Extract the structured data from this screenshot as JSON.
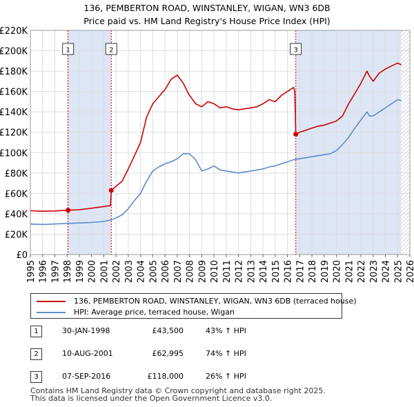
{
  "title": {
    "line1": "136, PEMBERTON ROAD, WINSTANLEY, WIGAN, WN3 6DB",
    "line2": "Price paid vs. HM Land Registry's House Price Index (HPI)"
  },
  "colors": {
    "property_line": "#cc0000",
    "hpi_line": "#5b8ccc",
    "shade": "#dde6f5",
    "grid": "#dddddd",
    "marker": "#cc0000"
  },
  "legend": {
    "property_label": "136, PEMBERTON ROAD, WINSTANLEY, WIGAN, WN3 6DB (terraced house)",
    "hpi_label": "HPI: Average price, terraced house, Wigan"
  },
  "sales": [
    {
      "num": "1",
      "date": "30-JAN-1998",
      "price": "£43,500",
      "hpi_change": "43% ↑ HPI"
    },
    {
      "num": "2",
      "date": "10-AUG-2001",
      "price": "£62,995",
      "hpi_change": "74% ↑ HPI"
    },
    {
      "num": "3",
      "date": "07-SEP-2016",
      "price": "£118,000",
      "hpi_change": "26% ↑ HPI"
    }
  ],
  "footer": {
    "line1": "Contains HM Land Registry data © Crown copyright and database right 2025.",
    "line2": "This data is licensed under the Open Government Licence v3.0."
  },
  "chart_data": {
    "type": "line",
    "xlim": [
      1995,
      2026
    ],
    "ylim": [
      0,
      220000
    ],
    "y_ticks": [
      {
        "value": 0,
        "label": "£0"
      },
      {
        "value": 20000,
        "label": "£20K"
      },
      {
        "value": 40000,
        "label": "£40K"
      },
      {
        "value": 60000,
        "label": "£60K"
      },
      {
        "value": 80000,
        "label": "£80K"
      },
      {
        "value": 100000,
        "label": "£100K"
      },
      {
        "value": 120000,
        "label": "£120K"
      },
      {
        "value": 140000,
        "label": "£140K"
      },
      {
        "value": 160000,
        "label": "£160K"
      },
      {
        "value": 180000,
        "label": "£180K"
      },
      {
        "value": 200000,
        "label": "£200K"
      },
      {
        "value": 220000,
        "label": "£220K"
      }
    ],
    "x_ticks": [
      "1995",
      "1996",
      "1997",
      "1998",
      "1999",
      "2000",
      "2001",
      "2002",
      "2003",
      "2004",
      "2005",
      "2006",
      "2007",
      "2008",
      "2009",
      "2010",
      "2011",
      "2012",
      "2013",
      "2014",
      "2015",
      "2016",
      "2017",
      "2018",
      "2019",
      "2020",
      "2021",
      "2022",
      "2023",
      "2024",
      "2025",
      "2026"
    ],
    "shaded_ranges": [
      [
        1998.08,
        2001.61
      ],
      [
        2016.68,
        2025.3
      ]
    ],
    "hatched_range": [
      2025.3,
      2026
    ],
    "sale_markers": [
      {
        "label": "1",
        "x": 1998.08,
        "y": 43500
      },
      {
        "label": "2",
        "x": 2001.61,
        "y": 62995
      },
      {
        "label": "3",
        "x": 2016.68,
        "y": 118000
      }
    ],
    "series": [
      {
        "name": "136, PEMBERTON ROAD, WINSTANLEY, WIGAN, WN3 6DB (terraced house)",
        "color": "#cc0000",
        "x": [
          1995,
          1996,
          1997,
          1998.08,
          1999,
          2000,
          2001.55,
          2001.61,
          2002,
          2002.5,
          2003,
          2003.5,
          2004,
          2004.5,
          2005,
          2005.5,
          2006,
          2006.5,
          2007,
          2007.5,
          2007.9,
          2008.5,
          2009,
          2009.5,
          2010,
          2010.5,
          2011,
          2011.5,
          2012,
          2012.5,
          2013,
          2013.5,
          2014,
          2014.5,
          2015,
          2015.5,
          2016,
          2016.5,
          2016.6,
          2016.68,
          2017,
          2017.5,
          2018,
          2018.5,
          2019,
          2019.5,
          2020,
          2020.5,
          2021,
          2021.5,
          2022,
          2022.5,
          2022.7,
          2023,
          2023.5,
          2024,
          2024.5,
          2025,
          2025.3
        ],
        "y": [
          43000,
          42500,
          42800,
          43500,
          44000,
          45500,
          48000,
          62995,
          67000,
          72000,
          84000,
          97000,
          110000,
          135000,
          148000,
          155000,
          162000,
          172000,
          176000,
          168000,
          158000,
          148000,
          145000,
          150000,
          148000,
          144000,
          145000,
          143000,
          142000,
          143000,
          144000,
          145000,
          148000,
          152000,
          150000,
          156000,
          160000,
          164000,
          160000,
          118000,
          120000,
          122000,
          124000,
          126000,
          127000,
          129000,
          131000,
          136000,
          148000,
          158000,
          168000,
          180000,
          175000,
          170000,
          178000,
          182000,
          185000,
          188000,
          186000
        ]
      },
      {
        "name": "HPI: Average price, terraced house, Wigan",
        "color": "#5b8ccc",
        "x": [
          1995,
          1996,
          1997,
          1998,
          1999,
          2000,
          2001,
          2001.6,
          2002,
          2002.5,
          2003,
          2003.5,
          2004,
          2004.5,
          2005,
          2005.5,
          2006,
          2006.5,
          2007,
          2007.5,
          2008,
          2008.5,
          2009,
          2009.5,
          2010,
          2010.5,
          2011,
          2011.5,
          2012,
          2012.5,
          2013,
          2013.5,
          2014,
          2014.5,
          2015,
          2015.5,
          2016,
          2016.5,
          2017,
          2017.5,
          2018,
          2018.5,
          2019,
          2019.5,
          2020,
          2020.5,
          2021,
          2021.5,
          2022,
          2022.5,
          2022.7,
          2023,
          2023.5,
          2024,
          2024.5,
          2025,
          2025.3
        ],
        "y": [
          30000,
          29500,
          30000,
          30500,
          31000,
          31500,
          32500,
          34000,
          36000,
          39000,
          45000,
          53000,
          60000,
          72000,
          82000,
          86000,
          89000,
          91000,
          94000,
          99000,
          99000,
          93000,
          82000,
          84000,
          87000,
          83000,
          82000,
          81000,
          80000,
          81000,
          82000,
          83000,
          84000,
          86000,
          87000,
          89000,
          91000,
          93000,
          94000,
          95000,
          96000,
          97000,
          98000,
          99000,
          102000,
          108000,
          115000,
          124000,
          132000,
          140000,
          136000,
          136000,
          140000,
          144000,
          148000,
          152000,
          151000
        ]
      }
    ]
  }
}
